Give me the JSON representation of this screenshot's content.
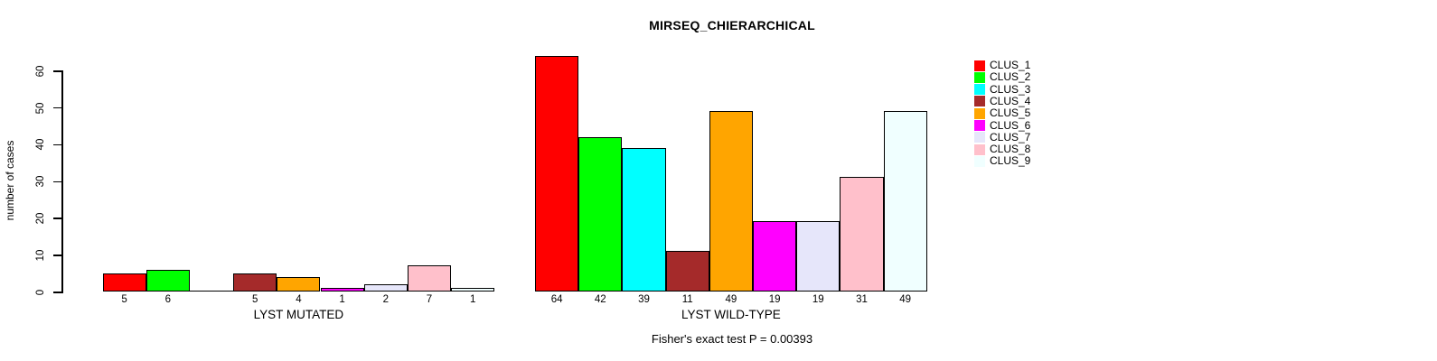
{
  "chart_data": {
    "type": "bar",
    "title": "MIRSEQ_CHIERARCHICAL",
    "ylabel": "number of cases",
    "ylim": [
      0,
      60
    ],
    "yticks": [
      "0",
      "10",
      "20",
      "30",
      "40",
      "50",
      "60"
    ],
    "grid": false,
    "legend_position": "top-right",
    "footnote": "Fisher's exact test P = 0.00393",
    "legend": [
      {
        "name": "CLUS_1",
        "color": "#FF0000"
      },
      {
        "name": "CLUS_2",
        "color": "#00FF00"
      },
      {
        "name": "CLUS_3",
        "color": "#00FFFF"
      },
      {
        "name": "CLUS_4",
        "color": "#A52A2A"
      },
      {
        "name": "CLUS_5",
        "color": "#FFA500"
      },
      {
        "name": "CLUS_6",
        "color": "#FF00FF"
      },
      {
        "name": "CLUS_7",
        "color": "#E6E6FA"
      },
      {
        "name": "CLUS_8",
        "color": "#FFC0CB"
      },
      {
        "name": "CLUS_9",
        "color": "#F0FFFF"
      }
    ],
    "groups": [
      {
        "label": "LYST MUTATED",
        "values": [
          5,
          6,
          0,
          5,
          4,
          1,
          2,
          7,
          1
        ],
        "bar_labels": [
          "5",
          "6",
          "",
          "5",
          "4",
          "1",
          "2",
          "7",
          "1"
        ]
      },
      {
        "label": "LYST WILD-TYPE",
        "values": [
          64,
          42,
          39,
          11,
          49,
          19,
          19,
          31,
          49
        ],
        "bar_labels": [
          "64",
          "42",
          "39",
          "11",
          "49",
          "19",
          "19",
          "31",
          "49"
        ]
      }
    ]
  }
}
